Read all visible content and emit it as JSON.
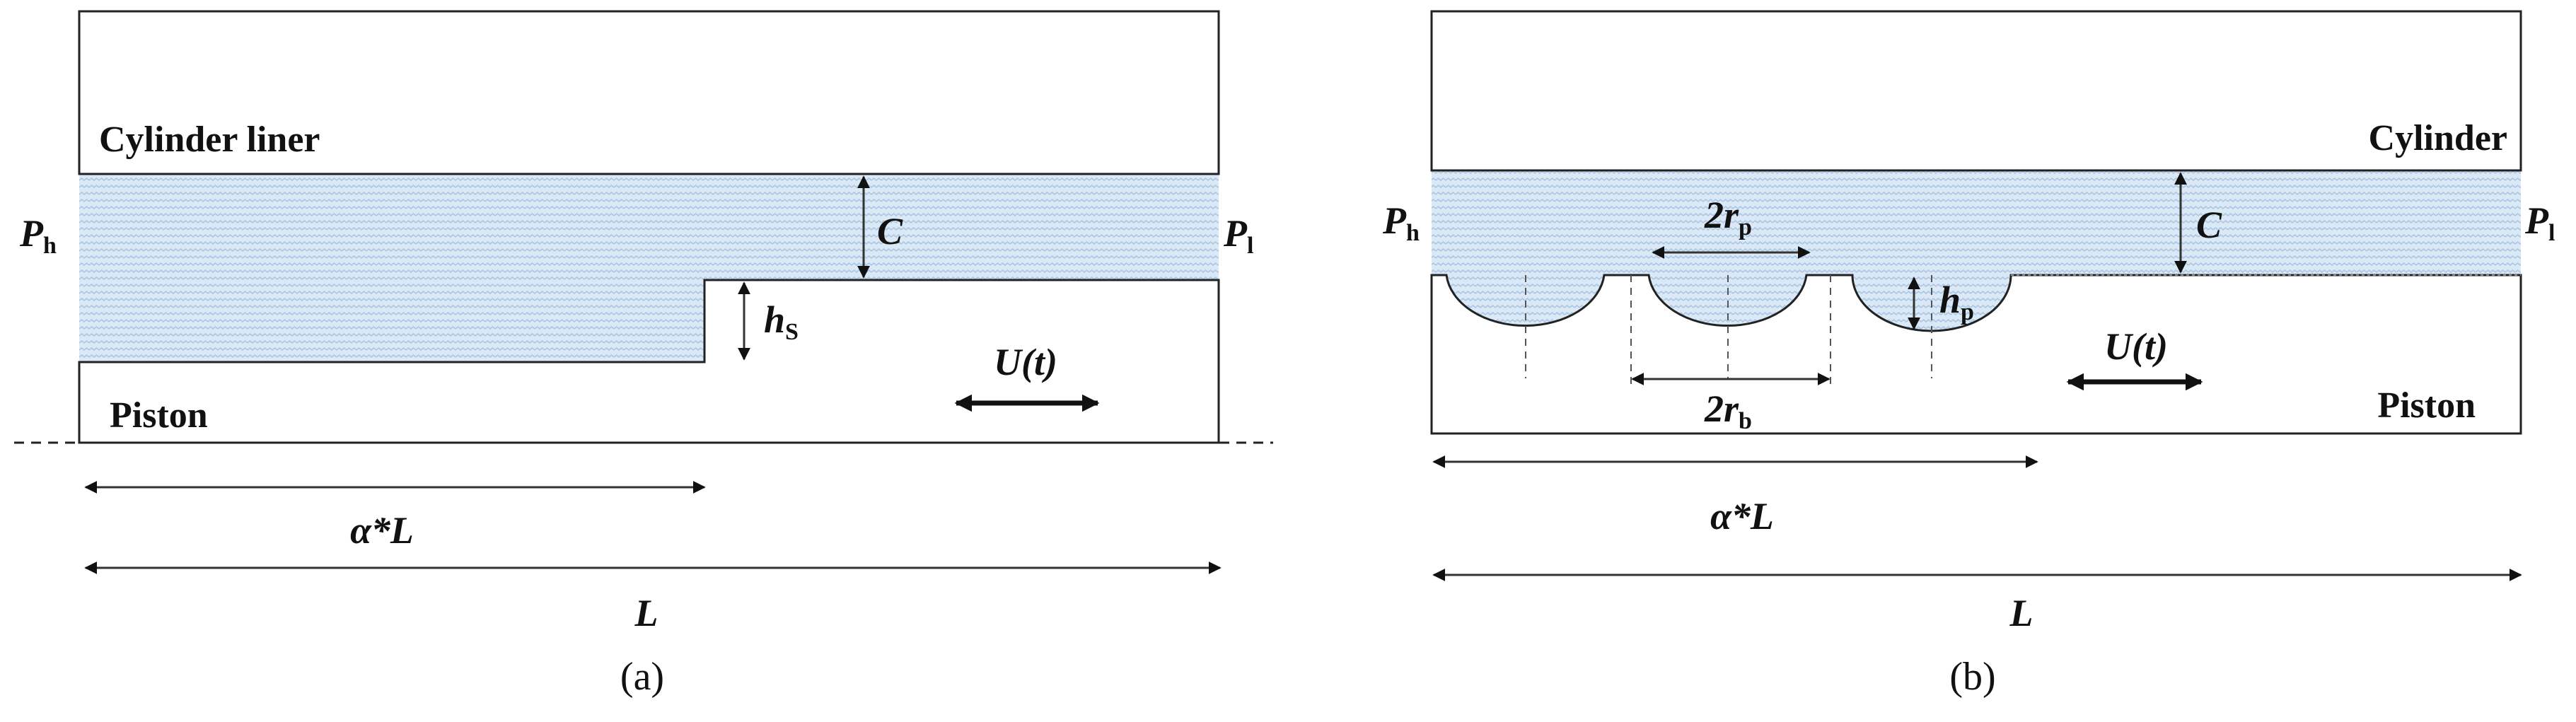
{
  "colors": {
    "fluid": "#dbe8f5",
    "fluid_texture": "#a9c6e4",
    "line": "#222222"
  },
  "panel_a": {
    "cylinder_label": "Cylinder liner",
    "piston_label": "Piston",
    "p_high": "P",
    "p_high_sub": "h",
    "p_low": "P",
    "p_low_sub": "l",
    "clearance": "C",
    "step_height": "h",
    "step_height_sub": "S",
    "velocity": "U(t)",
    "alpha_length": "α*L",
    "length": "L",
    "caption": "(a)"
  },
  "panel_b": {
    "cylinder_label": "Cylinder",
    "piston_label": "Piston",
    "p_high": "P",
    "p_high_sub": "h",
    "p_low": "P",
    "p_low_sub": "l",
    "clearance": "C",
    "dimple_diameter": "2r",
    "dimple_diameter_sub": "p",
    "base_diameter": "2r",
    "base_diameter_sub": "b",
    "dimple_depth": "h",
    "dimple_depth_sub": "p",
    "velocity": "U(t)",
    "alpha_length": "α*L",
    "length": "L",
    "caption": "(b)"
  }
}
